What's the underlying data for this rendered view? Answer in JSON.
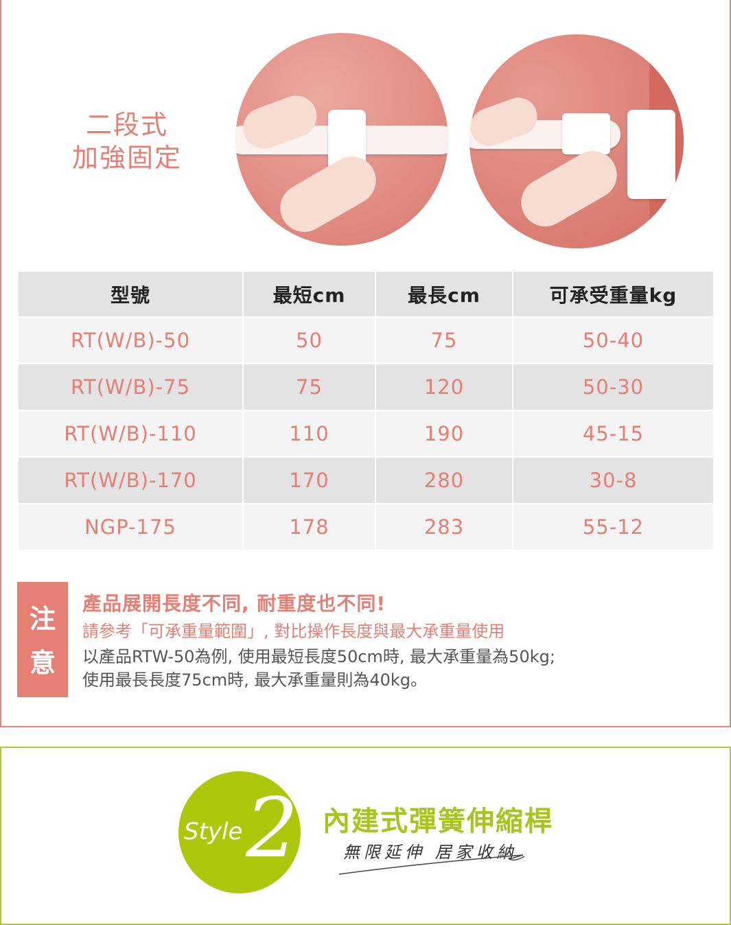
{
  "section1": {
    "headline": [
      "二段式",
      "加強固定"
    ],
    "table": {
      "headers": [
        "型號",
        "最短cm",
        "最長cm",
        "可承受重量kg"
      ],
      "rows": [
        [
          "RT(W/B)-50",
          "50",
          "75",
          "50-40"
        ],
        [
          "RT(W/B)-75",
          "75",
          "120",
          "50-30"
        ],
        [
          "RT(W/B)-110",
          "110",
          "190",
          "45-15"
        ],
        [
          "RT(W/B)-170",
          "170",
          "280",
          "30-8"
        ],
        [
          "NGP-175",
          "178",
          "283",
          "55-12"
        ]
      ]
    },
    "note": {
      "tag": [
        "注",
        "意"
      ],
      "line1": "產品展開長度不同, 耐重度也不同!",
      "line2": "請參考「可承重量範圍」, 對比操作長度與最大承重量使用",
      "line3": "以產品RTW-50為例, 使用最短長度50cm時, 最大承重量為50kg;",
      "line4": "使用最長長度75cm時, 最大承重量則為40kg。"
    }
  },
  "section2": {
    "badge_text": "Style",
    "badge_number": "2",
    "title": "內建式彈簧伸縮桿",
    "subtitle": "無限延伸 居家收納"
  },
  "colors": {
    "accent": "#e57e73",
    "green": "#adc70a"
  }
}
